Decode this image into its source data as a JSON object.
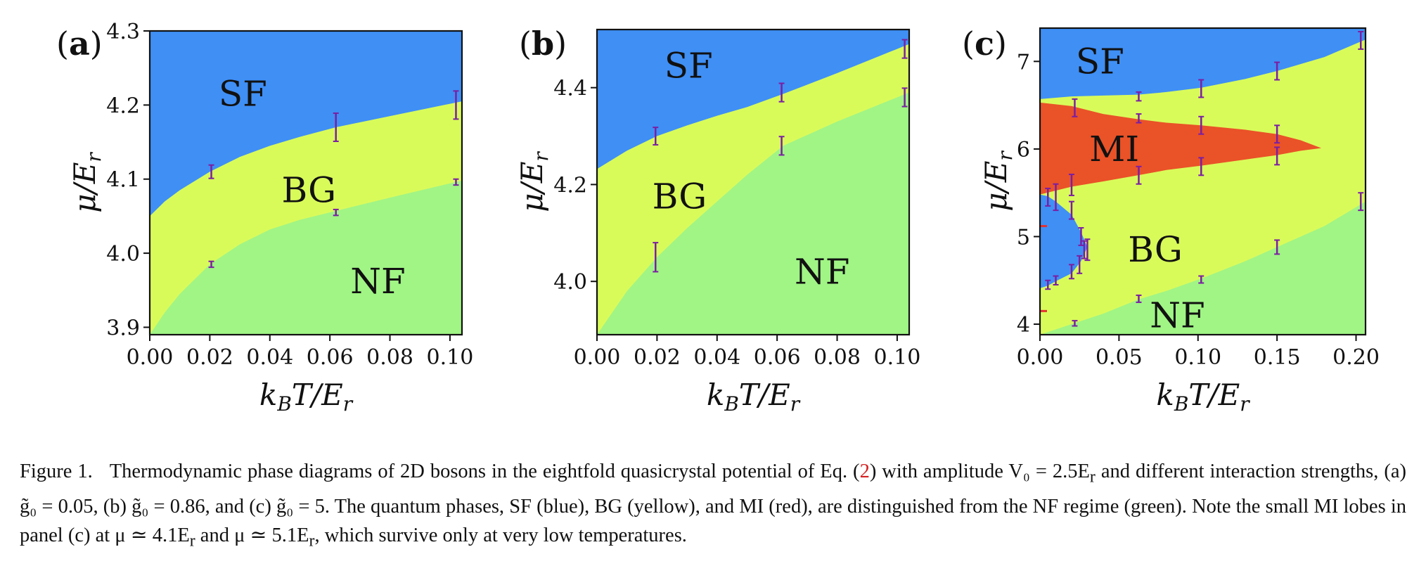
{
  "chart_data": [
    {
      "panel_id": "a",
      "panel_label": "a",
      "type": "area",
      "xlabel": "k_B T/E_r",
      "ylabel": "μ/E_r",
      "xlim": [
        0.0,
        0.104
      ],
      "ylim": [
        3.89,
        4.3
      ],
      "xticks": [
        0.0,
        0.02,
        0.04,
        0.06,
        0.08,
        0.1
      ],
      "xtick_labels": [
        "0.00",
        "0.02",
        "0.04",
        "0.06",
        "0.08",
        "0.10"
      ],
      "yticks": [
        3.9,
        4.0,
        4.1,
        4.2,
        4.3
      ],
      "ytick_labels": [
        "3.9",
        "4.0",
        "4.1",
        "4.2",
        "4.3"
      ],
      "boundaries": {
        "sf_bg": {
          "x": [
            0.0,
            0.005,
            0.01,
            0.02,
            0.03,
            0.04,
            0.05,
            0.062,
            0.08,
            0.104
          ],
          "y": [
            4.05,
            4.07,
            4.085,
            4.11,
            4.13,
            4.145,
            4.157,
            4.17,
            4.185,
            4.205
          ]
        },
        "bg_nf": {
          "x": [
            0.0,
            0.005,
            0.01,
            0.02,
            0.03,
            0.04,
            0.05,
            0.062,
            0.08,
            0.104
          ],
          "y": [
            3.89,
            3.92,
            3.945,
            3.985,
            4.012,
            4.032,
            4.045,
            4.057,
            4.075,
            4.098
          ]
        }
      },
      "error_bars": [
        {
          "x": 0.0205,
          "y": 4.11,
          "err": 0.009
        },
        {
          "x": 0.0205,
          "y": 3.985,
          "err": 0.004
        },
        {
          "x": 0.062,
          "y": 4.17,
          "err": 0.019
        },
        {
          "x": 0.062,
          "y": 4.055,
          "err": 0.004
        },
        {
          "x": 0.102,
          "y": 4.2,
          "err": 0.019
        },
        {
          "x": 0.102,
          "y": 4.096,
          "err": 0.004
        }
      ],
      "regions": [
        {
          "label": "SF",
          "x": 0.031,
          "y": 4.215,
          "color": "#3f8ff5"
        },
        {
          "label": "BG",
          "x": 0.053,
          "y": 4.085,
          "color": "#d9fb5a"
        },
        {
          "label": "NF",
          "x": 0.076,
          "y": 3.962,
          "color": "#a0f585"
        }
      ]
    },
    {
      "panel_id": "b",
      "panel_label": "b",
      "type": "area",
      "xlabel": "k_B T/E_r",
      "ylabel": "μ/E_r",
      "xlim": [
        0.0,
        0.104
      ],
      "ylim": [
        3.89,
        4.52
      ],
      "xticks": [
        0.0,
        0.02,
        0.04,
        0.06,
        0.08,
        0.1
      ],
      "xtick_labels": [
        "0.00",
        "0.02",
        "0.04",
        "0.06",
        "0.08",
        "0.10"
      ],
      "yticks": [
        4.0,
        4.2,
        4.4
      ],
      "ytick_labels": [
        "4.0",
        "4.2",
        "4.4"
      ],
      "boundaries": {
        "sf_bg": {
          "x": [
            0.0,
            0.01,
            0.02,
            0.03,
            0.04,
            0.05,
            0.062,
            0.08,
            0.104
          ],
          "y": [
            4.232,
            4.27,
            4.3,
            4.322,
            4.342,
            4.36,
            4.387,
            4.43,
            4.49
          ]
        },
        "bg_nf": {
          "x": [
            0.0,
            0.005,
            0.01,
            0.02,
            0.03,
            0.04,
            0.05,
            0.062,
            0.08,
            0.104
          ],
          "y": [
            3.89,
            3.935,
            3.98,
            4.05,
            4.11,
            4.165,
            4.22,
            4.28,
            4.33,
            4.39
          ]
        }
      },
      "error_bars": [
        {
          "x": 0.0195,
          "y": 4.3,
          "err": 0.018
        },
        {
          "x": 0.0195,
          "y": 4.05,
          "err": 0.03
        },
        {
          "x": 0.0615,
          "y": 4.39,
          "err": 0.019
        },
        {
          "x": 0.0615,
          "y": 4.28,
          "err": 0.019
        },
        {
          "x": 0.1025,
          "y": 4.48,
          "err": 0.019
        },
        {
          "x": 0.1025,
          "y": 4.38,
          "err": 0.019
        }
      ],
      "regions": [
        {
          "label": "SF",
          "x": 0.0305,
          "y": 4.445,
          "color": "#3f8ff5"
        },
        {
          "label": "BG",
          "x": 0.0275,
          "y": 4.175,
          "color": "#d9fb5a"
        },
        {
          "label": "NF",
          "x": 0.075,
          "y": 4.02,
          "color": "#a0f585"
        }
      ]
    },
    {
      "panel_id": "c",
      "panel_label": "c",
      "type": "area",
      "xlabel": "k_B T/E_r",
      "ylabel": "μ/E_r",
      "xlim": [
        0.0,
        0.206
      ],
      "ylim": [
        3.88,
        7.38
      ],
      "xticks": [
        0.0,
        0.05,
        0.1,
        0.15,
        0.2
      ],
      "xtick_labels": [
        "0.00",
        "0.05",
        "0.10",
        "0.15",
        "0.20"
      ],
      "yticks": [
        4,
        5,
        6,
        7
      ],
      "ytick_labels": [
        "4",
        "5",
        "6",
        "7"
      ],
      "boundaries": {
        "sf_upper_lower_edge": {
          "x": [
            0.0,
            0.02,
            0.04,
            0.062,
            0.08,
            0.102,
            0.13,
            0.15,
            0.18,
            0.206
          ],
          "y": [
            6.57,
            6.6,
            6.61,
            6.62,
            6.65,
            6.7,
            6.8,
            6.89,
            7.05,
            7.25
          ]
        },
        "mi_lobe": {
          "x": [
            0.0,
            0.02,
            0.04,
            0.062,
            0.08,
            0.102,
            0.13,
            0.15,
            0.165,
            0.178,
            0.165,
            0.15,
            0.13,
            0.102,
            0.08,
            0.062,
            0.04,
            0.02,
            0.0
          ],
          "y": [
            6.53,
            6.49,
            6.4,
            6.34,
            6.3,
            6.27,
            6.22,
            6.17,
            6.1,
            6.01,
            5.98,
            5.93,
            5.88,
            5.81,
            5.76,
            5.7,
            5.63,
            5.57,
            5.48
          ]
        },
        "sf_lower_lobe": {
          "x": [
            0.0,
            0.005,
            0.01,
            0.02,
            0.026,
            0.03,
            0.026,
            0.02,
            0.01,
            0.005,
            0.0
          ],
          "y": [
            5.48,
            5.46,
            5.4,
            5.25,
            5.05,
            4.88,
            4.72,
            4.58,
            4.49,
            4.44,
            4.41
          ]
        },
        "bg_nf": {
          "x": [
            0.0,
            0.02,
            0.04,
            0.062,
            0.08,
            0.102,
            0.13,
            0.15,
            0.18,
            0.206
          ],
          "y": [
            3.88,
            4.0,
            4.12,
            4.28,
            4.38,
            4.52,
            4.72,
            4.88,
            5.12,
            5.4
          ]
        }
      },
      "error_bars": [
        {
          "x": 0.005,
          "y": 5.45,
          "err": 0.1
        },
        {
          "x": 0.01,
          "y": 5.45,
          "err": 0.15
        },
        {
          "x": 0.02,
          "y": 5.59,
          "err": 0.12
        },
        {
          "x": 0.02,
          "y": 5.3,
          "err": 0.1
        },
        {
          "x": 0.022,
          "y": 6.47,
          "err": 0.1
        },
        {
          "x": 0.026,
          "y": 5.0,
          "err": 0.1
        },
        {
          "x": 0.028,
          "y": 4.85,
          "err": 0.1
        },
        {
          "x": 0.03,
          "y": 4.85,
          "err": 0.12
        },
        {
          "x": 0.025,
          "y": 4.68,
          "err": 0.1
        },
        {
          "x": 0.02,
          "y": 4.6,
          "err": 0.08
        },
        {
          "x": 0.01,
          "y": 4.5,
          "err": 0.05
        },
        {
          "x": 0.005,
          "y": 4.45,
          "err": 0.05
        },
        {
          "x": 0.022,
          "y": 4.01,
          "err": 0.03
        },
        {
          "x": 0.0625,
          "y": 6.6,
          "err": 0.05
        },
        {
          "x": 0.0625,
          "y": 6.35,
          "err": 0.05
        },
        {
          "x": 0.0625,
          "y": 5.7,
          "err": 0.1
        },
        {
          "x": 0.0625,
          "y": 4.29,
          "err": 0.04
        },
        {
          "x": 0.102,
          "y": 6.69,
          "err": 0.1
        },
        {
          "x": 0.102,
          "y": 6.27,
          "err": 0.1
        },
        {
          "x": 0.102,
          "y": 5.8,
          "err": 0.1
        },
        {
          "x": 0.102,
          "y": 4.51,
          "err": 0.04
        },
        {
          "x": 0.15,
          "y": 6.89,
          "err": 0.1
        },
        {
          "x": 0.15,
          "y": 6.17,
          "err": 0.1
        },
        {
          "x": 0.15,
          "y": 5.92,
          "err": 0.1
        },
        {
          "x": 0.15,
          "y": 4.88,
          "err": 0.08
        },
        {
          "x": 0.203,
          "y": 7.24,
          "err": 0.1
        },
        {
          "x": 0.203,
          "y": 5.4,
          "err": 0.1
        }
      ],
      "red_marks": [
        {
          "x": 0.0,
          "y": 5.12
        },
        {
          "x": 0.0,
          "y": 4.15
        }
      ],
      "regions": [
        {
          "label": "SF",
          "x": 0.038,
          "y": 7.0,
          "color": "#3f8ff5"
        },
        {
          "label": "MI",
          "x": 0.047,
          "y": 6.0,
          "color": "#ea5228"
        },
        {
          "label": "BG",
          "x": 0.073,
          "y": 4.85,
          "color": "#d9fb5a"
        },
        {
          "label": "NF",
          "x": 0.087,
          "y": 4.1,
          "color": "#a0f585"
        }
      ]
    }
  ],
  "caption": {
    "figure_label": "Figure 1.",
    "text_1": "Thermodynamic phase diagrams of 2D bosons in the eightfold quasicrystal potential of Eq. (",
    "eq_ref": "2",
    "text_2": ") with amplitude V₀ = 2.5E",
    "sub_r1": "r",
    "text_3": " and different interaction strengths, (a) g̃₀ = 0.05, (b) g̃₀ = 0.86, and (c) g̃₀ = 5. The quantum phases, SF (blue), BG (yellow), and MI (red), are distinguished from the NF regime (green). Note the small MI lobes in panel (c) at μ ≃ 4.1E",
    "sub_r2": "r",
    "text_4": " and μ ≃ 5.1E",
    "sub_r3": "r",
    "text_5": ", which survive only at very low temperatures."
  },
  "colors": {
    "sf": "#3f8ff5",
    "bg": "#d9fb5a",
    "nf": "#a0f585",
    "mi": "#ea5228",
    "error_bar": "#7b1fa2",
    "red_mark": "#e53030"
  }
}
